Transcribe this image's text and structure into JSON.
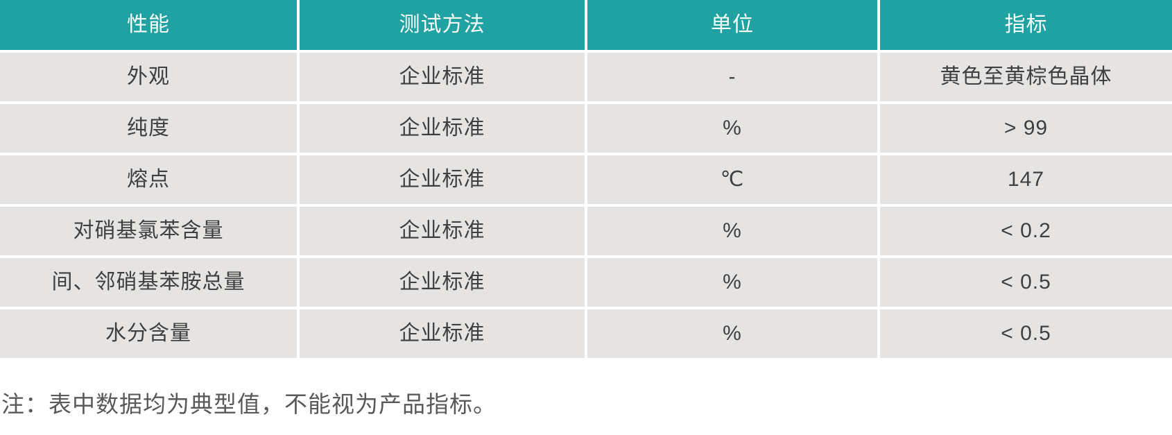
{
  "colors": {
    "header_background": "#21A2A2",
    "header_text": "#FFFFFF",
    "row_background": "#E5E4E2",
    "row_text": "#3F3F3F",
    "note_text": "#595959",
    "grid_gap": "#FFFFFF"
  },
  "table": {
    "columns": [
      "性能",
      "测试方法",
      "单位",
      "指标"
    ],
    "rows": [
      {
        "property": "外观",
        "method": "企业标准",
        "unit": "-",
        "value": "黄色至黄棕色晶体"
      },
      {
        "property": "纯度",
        "method": "企业标准",
        "unit": "%",
        "value": "> 99"
      },
      {
        "property": "熔点",
        "method": "企业标准",
        "unit": "℃",
        "value": "147"
      },
      {
        "property": "对硝基氯苯含量",
        "method": "企业标准",
        "unit": "%",
        "value": "< 0.2"
      },
      {
        "property": "间、邻硝基苯胺总量",
        "method": "企业标准",
        "unit": "%",
        "value": "< 0.5"
      },
      {
        "property": "水分含量",
        "method": "企业标准",
        "unit": "%",
        "value": "< 0.5"
      }
    ]
  },
  "note": "注：表中数据均为典型值，不能视为产品指标。"
}
